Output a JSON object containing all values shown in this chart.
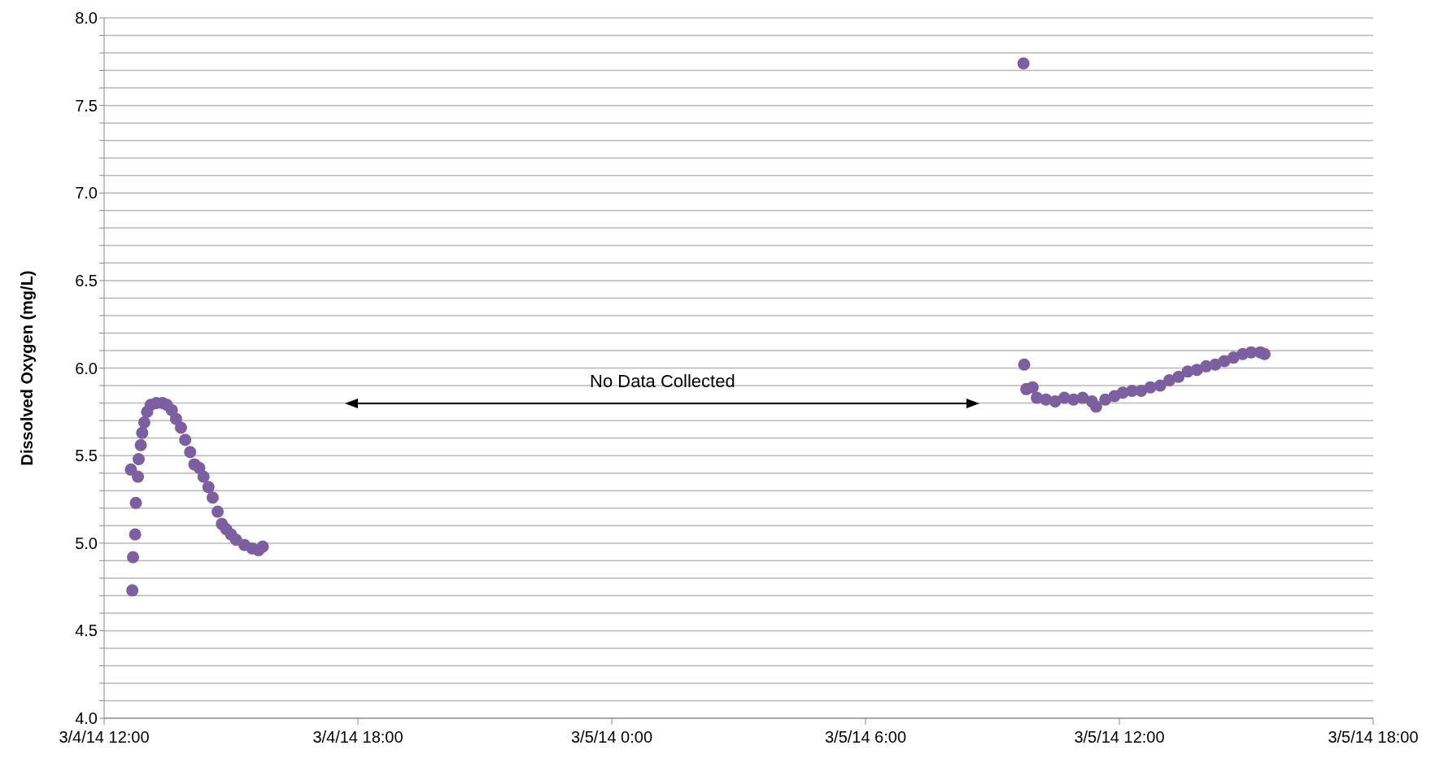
{
  "chart_data": {
    "type": "scatter",
    "ylabel": "Dissolved Oxygen (mg/L)",
    "marker": "circle",
    "grid": "y",
    "annotations": [
      "No Data Collected"
    ],
    "xlim": [
      "--03-04T12:00",
      "--03-05T18:00"
    ],
    "xticks": [
      {
        "value": "--03-04T12:00",
        "label": "3/4/14 12:00"
      },
      {
        "value": "--03-04T18:00",
        "label": "3/4/14 18:00"
      },
      {
        "value": "--03-05T00:00",
        "label": "3/5/14 0:00"
      },
      {
        "value": "--03-05T06:00",
        "label": "3/5/14 6:00"
      },
      {
        "value": "--03-05T12:00",
        "label": "3/5/14 12:00"
      },
      {
        "value": "--03-05T18:00",
        "label": "3/5/14 18:00"
      }
    ],
    "ylim": [
      4,
      8
    ],
    "yticks": [
      {
        "value": 4,
        "label": "4.0"
      },
      {
        "value": 4.1,
        "label": null
      },
      {
        "value": 4.2,
        "label": null
      },
      {
        "value": 4.3,
        "label": null
      },
      {
        "value": 4.4,
        "label": null
      },
      {
        "value": 4.5,
        "label": "4.5"
      },
      {
        "value": 4.6,
        "label": null
      },
      {
        "value": 4.7,
        "label": null
      },
      {
        "value": 4.8,
        "label": null
      },
      {
        "value": 4.9,
        "label": null
      },
      {
        "value": 5,
        "label": "5.0"
      },
      {
        "value": 5.1,
        "label": null
      },
      {
        "value": 5.2,
        "label": null
      },
      {
        "value": 5.3,
        "label": null
      },
      {
        "value": 5.4,
        "label": null
      },
      {
        "value": 5.5,
        "label": "5.5"
      },
      {
        "value": 5.6,
        "label": null
      },
      {
        "value": 5.7,
        "label": null
      },
      {
        "value": 5.8,
        "label": null
      },
      {
        "value": 5.9,
        "label": null
      },
      {
        "value": 6,
        "label": "6.0"
      },
      {
        "value": 6.1,
        "label": null
      },
      {
        "value": 6.2,
        "label": null
      },
      {
        "value": 6.3,
        "label": null
      },
      {
        "value": 6.4,
        "label": null
      },
      {
        "value": 6.5,
        "label": "6.5"
      },
      {
        "value": 6.6,
        "label": null
      },
      {
        "value": 6.7,
        "label": null
      },
      {
        "value": 6.8,
        "label": null
      },
      {
        "value": 6.9,
        "label": null
      },
      {
        "value": 7,
        "label": "7.0"
      },
      {
        "value": 7.1,
        "label": null
      },
      {
        "value": 7.2,
        "label": null
      },
      {
        "value": 7.3,
        "label": null
      },
      {
        "value": 7.4,
        "label": null
      },
      {
        "value": 7.5,
        "label": "7.5"
      },
      {
        "value": 7.6,
        "label": null
      },
      {
        "value": 7.7,
        "label": null
      },
      {
        "value": 7.8,
        "label": null
      },
      {
        "value": 7.9,
        "label": null
      },
      {
        "value": 8,
        "label": "8.0"
      }
    ],
    "series": [
      {
        "color": "#7b5fa0",
        "x": [
          "--03-04T12:38",
          "--03-04T12:40",
          "--03-04T12:41",
          "--03-04T12:44",
          "--03-04T12:45",
          "--03-04T12:48",
          "--03-04T12:49",
          "--03-04T12:52",
          "--03-04T12:54",
          "--03-04T12:57",
          "--03-04T13:01",
          "--03-04T13:06",
          "--03-04T13:14",
          "--03-04T13:23",
          "--03-04T13:29",
          "--03-04T13:36",
          "--03-04T13:42",
          "--03-04T13:49",
          "--03-04T13:55",
          "--03-04T14:02",
          "--03-04T14:08",
          "--03-04T14:15",
          "--03-04T14:21",
          "--03-04T14:28",
          "--03-04T14:34",
          "--03-04T14:41",
          "--03-04T14:47",
          "--03-04T14:53",
          "--03-04T15:00",
          "--03-04T15:07",
          "--03-04T15:19",
          "--03-04T15:30",
          "--03-04T15:39",
          "--03-04T15:45",
          "--03-05T09:44",
          "--03-05T09:45",
          "--03-05T09:48",
          "--03-05T09:57",
          "--03-05T10:03",
          "--03-05T10:16",
          "--03-05T10:29",
          "--03-05T10:42",
          "--03-05T10:55",
          "--03-05T11:08",
          "--03-05T11:21",
          "--03-05T11:27",
          "--03-05T11:40",
          "--03-05T11:53",
          "--03-05T12:05",
          "--03-05T12:18",
          "--03-05T12:31",
          "--03-05T12:44",
          "--03-05T12:58",
          "--03-05T13:11",
          "--03-05T13:24",
          "--03-05T13:37",
          "--03-05T13:50",
          "--03-05T14:03",
          "--03-05T14:16",
          "--03-05T14:29",
          "--03-05T14:42",
          "--03-05T14:55",
          "--03-05T15:07",
          "--03-05T15:20",
          "--03-05T15:26"
        ],
        "values": [
          5.42,
          4.73,
          4.92,
          5.05,
          5.23,
          5.38,
          5.48,
          5.56,
          5.63,
          5.69,
          5.75,
          5.79,
          5.8,
          5.8,
          5.79,
          5.76,
          5.71,
          5.66,
          5.59,
          5.52,
          5.45,
          5.43,
          5.38,
          5.32,
          5.26,
          5.18,
          5.11,
          5.08,
          5.05,
          5.02,
          4.99,
          4.97,
          4.96,
          4.98,
          7.74,
          6.02,
          5.88,
          5.89,
          5.83,
          5.82,
          5.81,
          5.83,
          5.82,
          5.83,
          5.81,
          5.78,
          5.82,
          5.84,
          5.86,
          5.87,
          5.87,
          5.89,
          5.9,
          5.93,
          5.95,
          5.98,
          5.99,
          6.01,
          6.02,
          6.04,
          6.06,
          6.08,
          6.09,
          6.09,
          6.08
        ]
      }
    ]
  }
}
